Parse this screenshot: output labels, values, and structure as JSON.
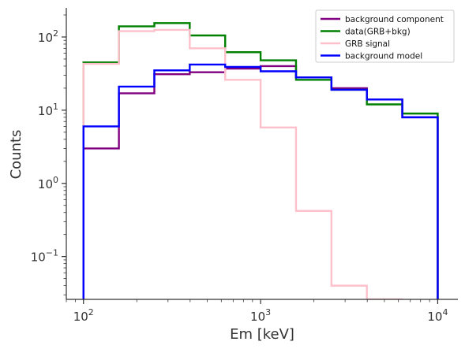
{
  "chart_data": {
    "type": "line",
    "step": true,
    "xscale": "log",
    "yscale": "log",
    "xlabel": "Em [keV]",
    "ylabel": "Counts",
    "xlim": [
      80,
      13000
    ],
    "ylim": [
      0.026,
      250
    ],
    "x_ticks": [
      {
        "value": 100,
        "base": "10",
        "exp": "2"
      },
      {
        "value": 1000,
        "base": "10",
        "exp": "3"
      },
      {
        "value": 10000,
        "base": "10",
        "exp": "4"
      }
    ],
    "y_ticks": [
      {
        "value": 0.1,
        "base": "10",
        "exp": "−1"
      },
      {
        "value": 1,
        "base": "10",
        "exp": "0"
      },
      {
        "value": 10,
        "base": "10",
        "exp": "1"
      },
      {
        "value": 100,
        "base": "10",
        "exp": "2"
      }
    ],
    "bin_edges": [
      100,
      158.5,
      251.2,
      398.1,
      631,
      1000,
      1585,
      2512,
      3981,
      6310,
      10000
    ],
    "legend_position": "top-right",
    "grid": false,
    "series": [
      {
        "name": "background component",
        "color": "#800080",
        "values": [
          3,
          17,
          31,
          33,
          37,
          40,
          28,
          20,
          14,
          8
        ]
      },
      {
        "name": "data(GRB+bkg)",
        "color": "#008000",
        "values": [
          45,
          140,
          155,
          105,
          62,
          48,
          26,
          19,
          12,
          9
        ]
      },
      {
        "name": "GRB signal",
        "color": "#ffc0cb",
        "values": [
          43,
          120,
          125,
          70,
          26,
          5.8,
          0.42,
          0.04,
          0.026,
          null
        ]
      },
      {
        "name": "background model",
        "color": "#0000ff",
        "values": [
          6,
          21,
          35,
          42,
          39,
          34,
          28,
          19,
          14,
          8
        ]
      }
    ]
  }
}
